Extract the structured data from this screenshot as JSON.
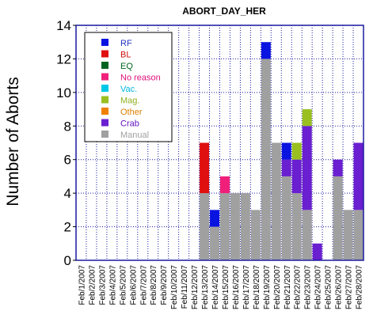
{
  "chart_data": {
    "type": "bar",
    "stacked": true,
    "title": "ABORT_DAY_HER",
    "xlabel": "",
    "ylabel": "Number of Aborts",
    "ylim": [
      0,
      14
    ],
    "yticks": [
      0,
      2,
      4,
      6,
      8,
      10,
      12,
      14
    ],
    "grid": true,
    "legend_position": "top-left",
    "categories": [
      "Feb/1/2007",
      "Feb/2/2007",
      "Feb/3/2007",
      "Feb/4/2007",
      "Feb/5/2007",
      "Feb/6/2007",
      "Feb/7/2007",
      "Feb/8/2007",
      "Feb/9/2007",
      "Feb/10/2007",
      "Feb/11/2007",
      "Feb/12/2007",
      "Feb/13/2007",
      "Feb/14/2007",
      "Feb/15/2007",
      "Feb/16/2007",
      "Feb/17/2007",
      "Feb/18/2007",
      "Feb/19/2007",
      "Feb/20/2007",
      "Feb/21/2007",
      "Feb/22/2007",
      "Feb/23/2007",
      "Feb/24/2007",
      "Feb/25/2007",
      "Feb/26/2007",
      "Feb/27/2007",
      "Feb/28/2007"
    ],
    "series": [
      {
        "name": "Manual",
        "color": "#a0a0a0",
        "values": [
          0,
          0,
          0,
          0,
          0,
          0,
          0,
          0,
          0,
          0,
          0,
          0,
          4,
          2,
          4,
          4,
          4,
          3,
          12,
          7,
          5,
          4,
          3,
          0,
          0,
          5,
          3,
          3
        ]
      },
      {
        "name": "Crab",
        "color": "#6a1fd0",
        "values": [
          0,
          0,
          0,
          0,
          0,
          0,
          0,
          0,
          0,
          0,
          0,
          0,
          0,
          0,
          0,
          0,
          0,
          0,
          0,
          0,
          1,
          2,
          5,
          1,
          0,
          1,
          0,
          4
        ]
      },
      {
        "name": "Other",
        "color": "#f08000",
        "values": [
          0,
          0,
          0,
          0,
          0,
          0,
          0,
          0,
          0,
          0,
          0,
          0,
          0,
          0,
          0,
          0,
          0,
          0,
          0,
          0,
          0,
          0,
          0,
          0,
          0,
          0,
          0,
          0
        ]
      },
      {
        "name": "Mag.",
        "color": "#99c020",
        "values": [
          0,
          0,
          0,
          0,
          0,
          0,
          0,
          0,
          0,
          0,
          0,
          0,
          0,
          0,
          0,
          0,
          0,
          0,
          0,
          0,
          0,
          1,
          1,
          0,
          0,
          0,
          0,
          0
        ]
      },
      {
        "name": "Vac.",
        "color": "#00c8e8",
        "values": [
          0,
          0,
          0,
          0,
          0,
          0,
          0,
          0,
          0,
          0,
          0,
          0,
          0,
          0,
          0,
          0,
          0,
          0,
          0,
          0,
          0,
          0,
          0,
          0,
          0,
          0,
          0,
          0
        ]
      },
      {
        "name": "No reason",
        "color": "#f0207a",
        "values": [
          0,
          0,
          0,
          0,
          0,
          0,
          0,
          0,
          0,
          0,
          0,
          0,
          0,
          0,
          1,
          0,
          0,
          0,
          0,
          0,
          0,
          0,
          0,
          0,
          0,
          0,
          0,
          0
        ]
      },
      {
        "name": "EQ",
        "color": "#006420",
        "values": [
          0,
          0,
          0,
          0,
          0,
          0,
          0,
          0,
          0,
          0,
          0,
          0,
          0,
          0,
          0,
          0,
          0,
          0,
          0,
          0,
          0,
          0,
          0,
          0,
          0,
          0,
          0,
          0
        ]
      },
      {
        "name": "BL",
        "color": "#e01010",
        "values": [
          0,
          0,
          0,
          0,
          0,
          0,
          0,
          0,
          0,
          0,
          0,
          0,
          3,
          0,
          0,
          0,
          0,
          0,
          0,
          0,
          0,
          0,
          0,
          0,
          0,
          0,
          0,
          0
        ]
      },
      {
        "name": "RF",
        "color": "#0a14e0",
        "values": [
          0,
          0,
          0,
          0,
          0,
          0,
          0,
          0,
          0,
          0,
          0,
          0,
          0,
          1,
          0,
          0,
          0,
          0,
          1,
          0,
          1,
          0,
          0,
          0,
          0,
          0,
          0,
          0
        ]
      }
    ],
    "legend": [
      {
        "name": "RF",
        "text_color": "#2030c0",
        "swatch": "#0a14e0"
      },
      {
        "name": "BL",
        "text_color": "#d01010",
        "swatch": "#e01010"
      },
      {
        "name": "EQ",
        "text_color": "#006420",
        "swatch": "#006420"
      },
      {
        "name": "No reason",
        "text_color": "#e0107a",
        "swatch": "#f0207a"
      },
      {
        "name": "Vac.",
        "text_color": "#00b8e0",
        "swatch": "#00c8e8"
      },
      {
        "name": "Mag.",
        "text_color": "#90b020",
        "swatch": "#99c020"
      },
      {
        "name": "Other",
        "text_color": "#e08000",
        "swatch": "#f08000"
      },
      {
        "name": "Crab",
        "text_color": "#6010c0",
        "swatch": "#6a1fd0"
      },
      {
        "name": "Manual",
        "text_color": "#a0a0a0",
        "swatch": "#a0a0a0"
      }
    ],
    "grid_color": "#1a1aa0",
    "frame_color": "#1a1aa0"
  }
}
